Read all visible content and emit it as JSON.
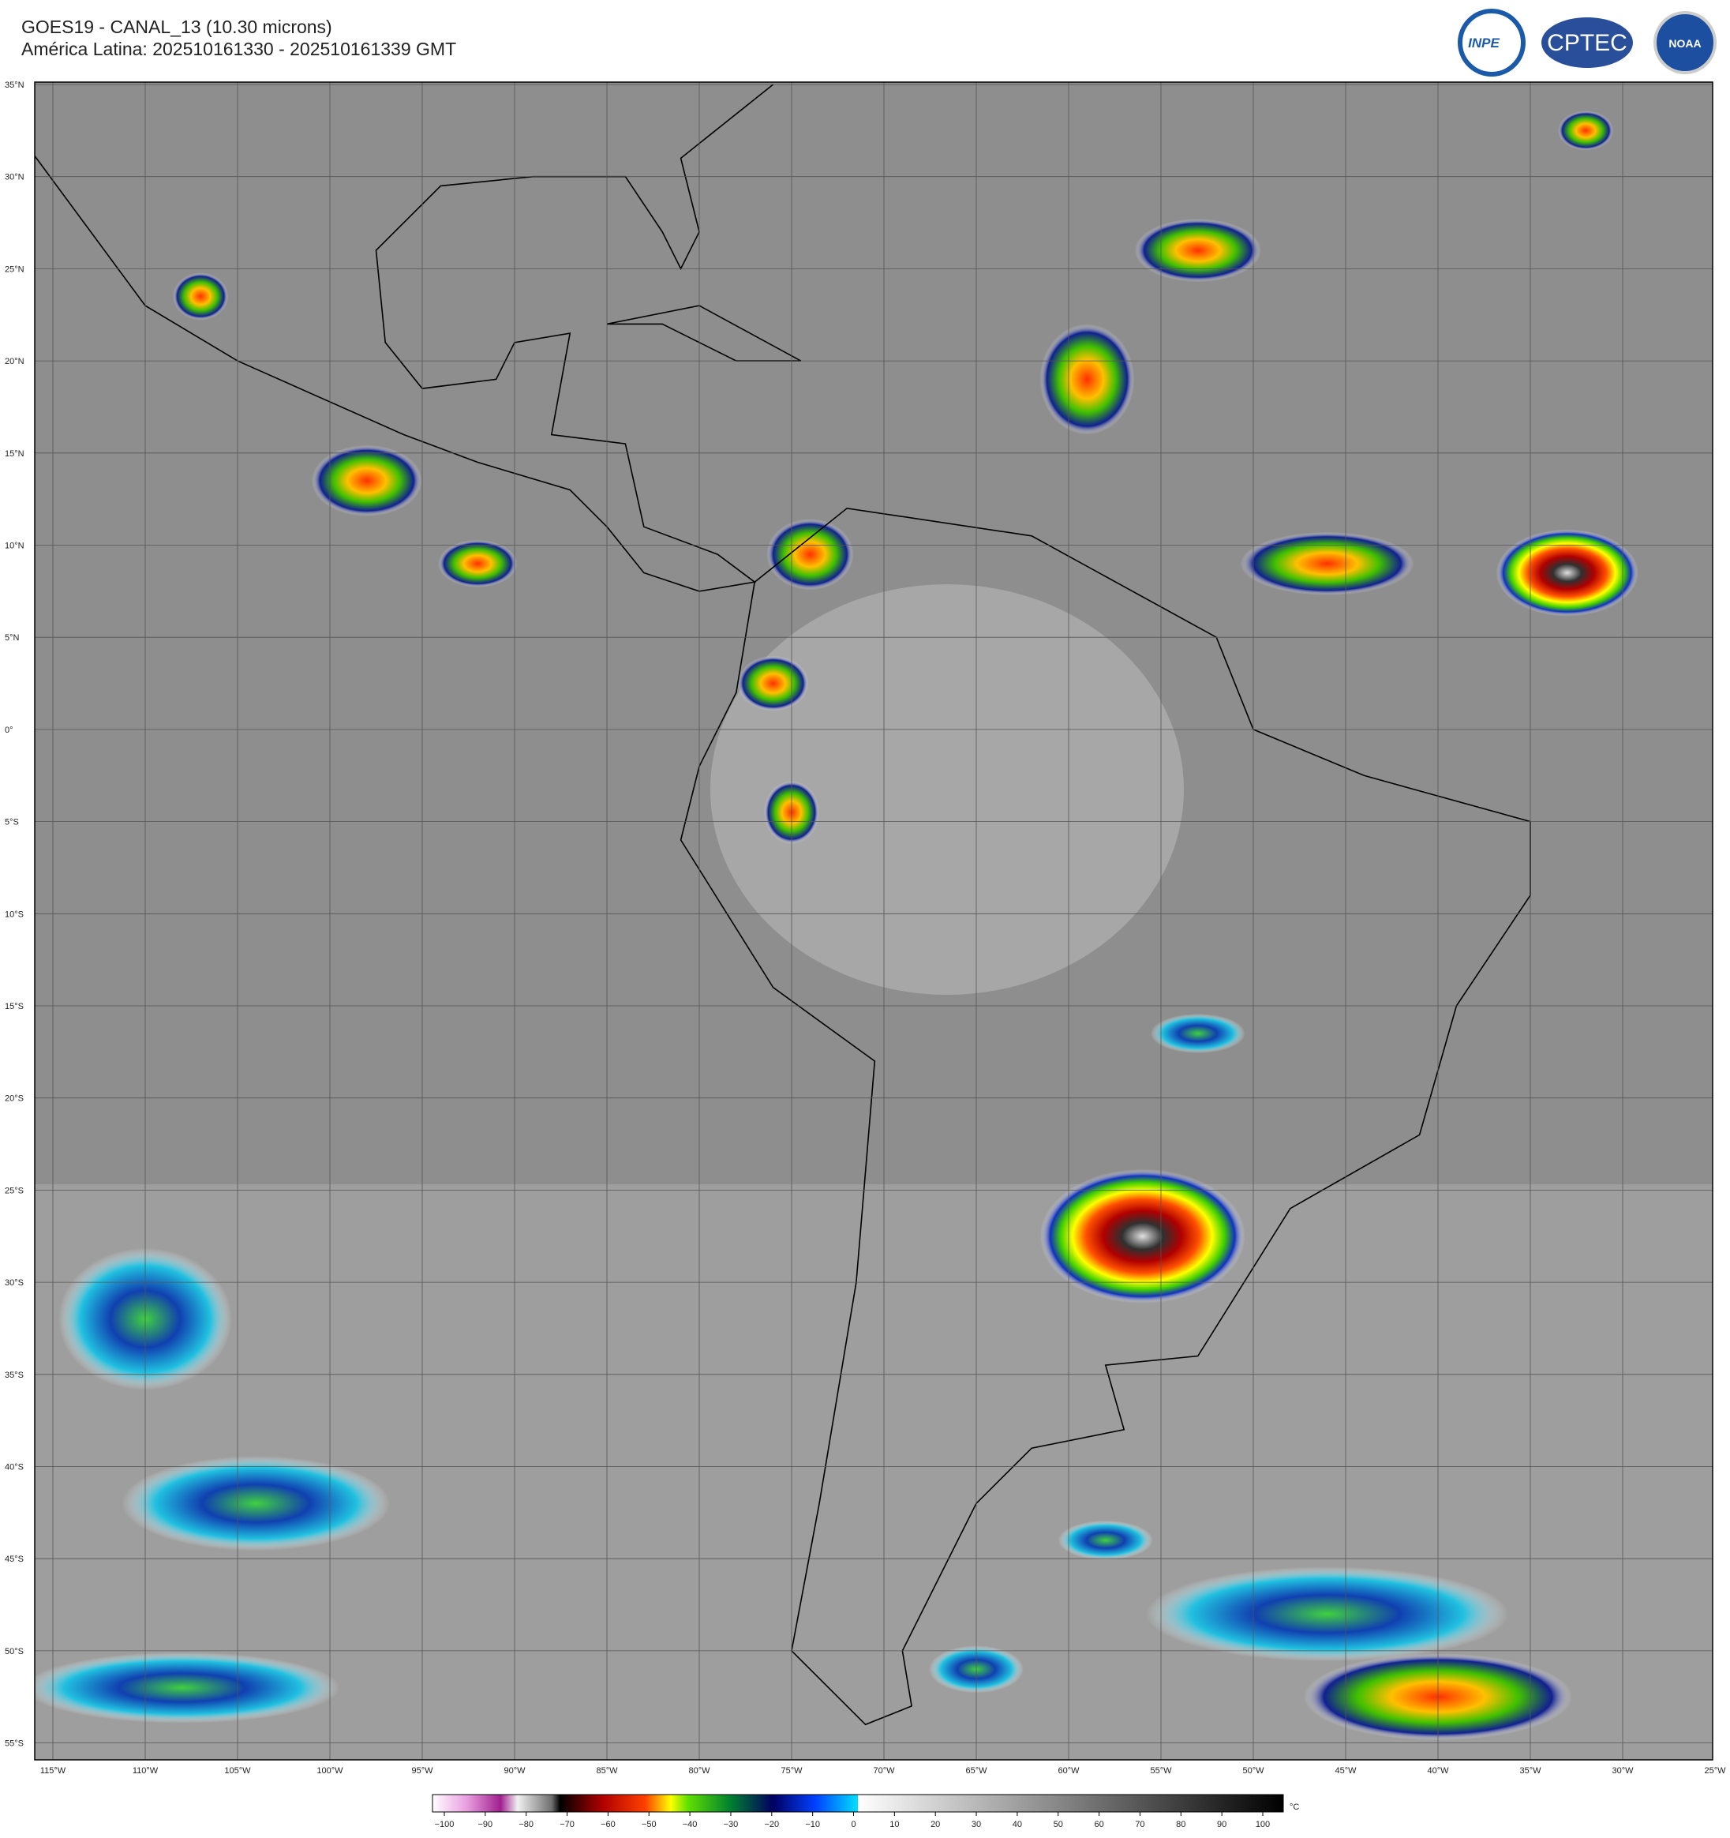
{
  "header": {
    "title": "GOES19 - CANAL_13 (10.30 microns)",
    "subtitle": "América Latina: 202510161330 - 202510161339 GMT"
  },
  "logos": {
    "inpe": "INPE",
    "cptec": "CPTEC",
    "noaa": "NOAA"
  },
  "map": {
    "lat_labels": [
      "35°N",
      "30°N",
      "25°N",
      "20°N",
      "15°N",
      "10°N",
      "5°N",
      "0°",
      "5°S",
      "10°S",
      "15°S",
      "20°S",
      "25°S",
      "30°S",
      "35°S",
      "40°S",
      "45°S",
      "50°S",
      "55°S"
    ],
    "lon_labels": [
      "115°W",
      "110°W",
      "105°W",
      "100°W",
      "95°W",
      "90°W",
      "85°W",
      "80°W",
      "75°W",
      "70°W",
      "65°W",
      "60°W",
      "55°W",
      "50°W",
      "45°W",
      "40°W",
      "35°W",
      "30°W",
      "25°W"
    ]
  },
  "colorbar": {
    "ticks": [
      "−100",
      "−90",
      "−80",
      "−70",
      "−60",
      "−50",
      "−40",
      "−30",
      "−20",
      "−10",
      "0",
      "10",
      "20",
      "30",
      "40",
      "50",
      "60",
      "70",
      "80",
      "90",
      "100"
    ],
    "unit": "°C"
  }
}
